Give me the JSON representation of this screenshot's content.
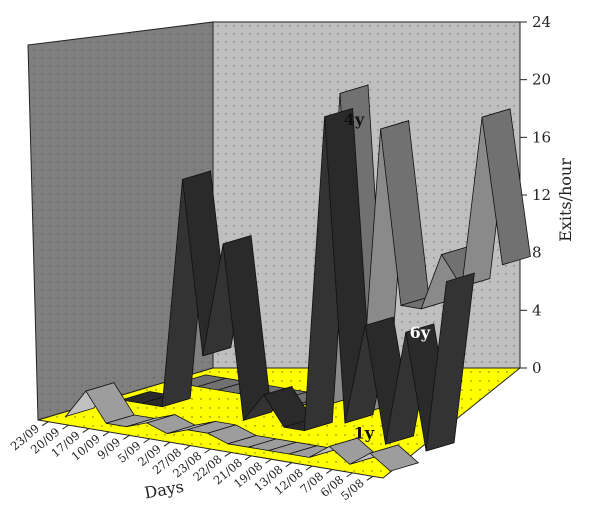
{
  "chart_data": {
    "type": "ribbon-3d",
    "title": "",
    "xlabel": "Days",
    "ylabel": "Exits/hour",
    "ylim": [
      0,
      24
    ],
    "y_ticks": [
      "0",
      "4",
      "8",
      "12",
      "16",
      "20",
      "24"
    ],
    "categories": [
      "23/09",
      "20/09",
      "17/09",
      "10/09",
      "9/09",
      "5/09",
      "2/09",
      "27/08",
      "23/08",
      "22/08",
      "21/08",
      "19/08",
      "13/08",
      "12/08",
      "7/08",
      "6/08",
      "5/08"
    ],
    "grid": true,
    "colors": {
      "floor": "#ffff00",
      "left_wall": "#7f7f7f",
      "back_wall": "#bfbfbf",
      "ribbon_light": "#c0c0c0",
      "ribbon_dark": "#333333"
    },
    "series": [
      {
        "name": "1y",
        "color": "#c0c0c0",
        "values": [
          0,
          2,
          0,
          0,
          0.5,
          0,
          0.5,
          0.5,
          0,
          0,
          0,
          0,
          0,
          1,
          0,
          1,
          0
        ]
      },
      {
        "name": "6y",
        "color": "#333333",
        "values": [
          0,
          0,
          0,
          16,
          4,
          12,
          0,
          2,
          0,
          0,
          22,
          1,
          8,
          0,
          8,
          0,
          12
        ]
      },
      {
        "name": "4y",
        "color": "#8a8a8a",
        "values": [
          0,
          0,
          0,
          0,
          0,
          0,
          0,
          0,
          22,
          0,
          20,
          8,
          8,
          12,
          10,
          22,
          12
        ]
      }
    ]
  }
}
